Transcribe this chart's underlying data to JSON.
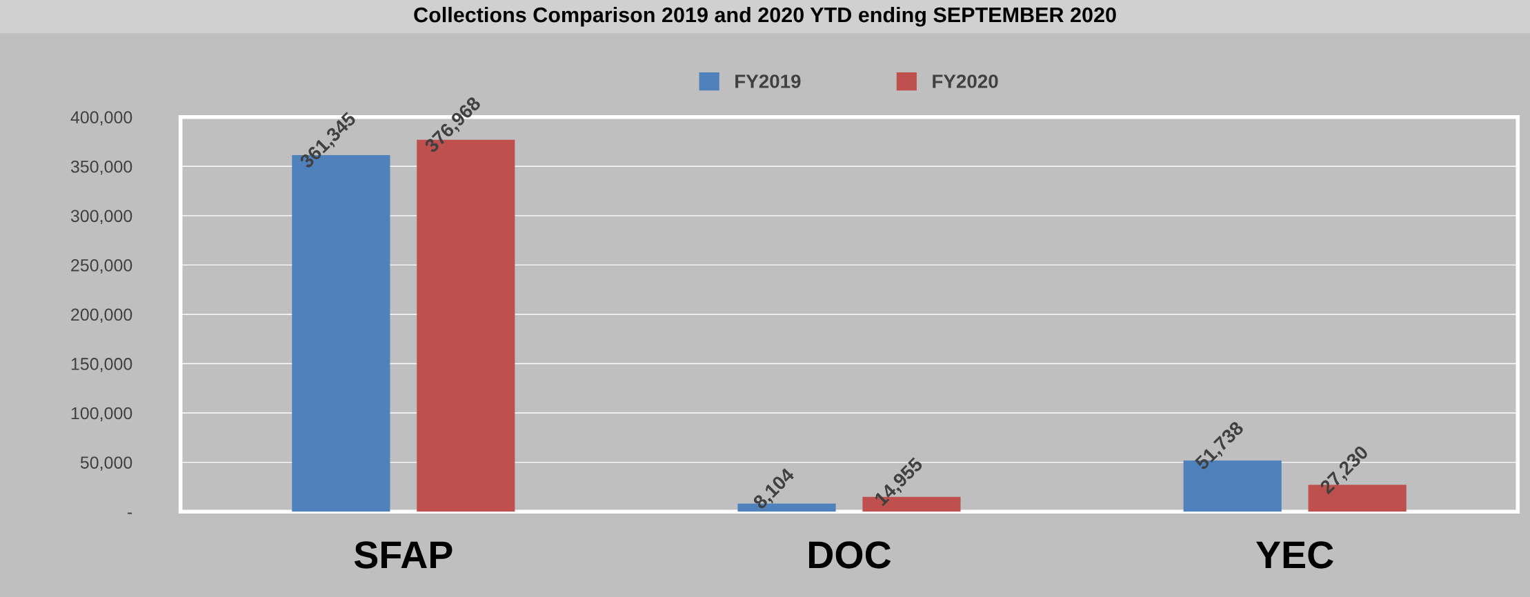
{
  "chart_data": {
    "type": "bar",
    "title": "Collections Comparison 2019 and 2020 YTD ending SEPTEMBER 2020",
    "categories": [
      "SFAP",
      "DOC",
      "YEC"
    ],
    "series": [
      {
        "name": "FY2019",
        "color": "#4f81bd",
        "values": [
          361345,
          8104,
          51738
        ],
        "value_labels": [
          "361,345",
          "8,104",
          "51,738"
        ]
      },
      {
        "name": "FY2020",
        "color": "#c0504d",
        "values": [
          376968,
          14955,
          27230
        ],
        "value_labels": [
          "376,968",
          "14,955",
          "27,230"
        ]
      }
    ],
    "ylim": [
      0,
      400000
    ],
    "yticks": [
      {
        "value": 0,
        "label": "-"
      },
      {
        "value": 50000,
        "label": "50,000"
      },
      {
        "value": 100000,
        "label": "100,000"
      },
      {
        "value": 150000,
        "label": "150,000"
      },
      {
        "value": 200000,
        "label": "200,000"
      },
      {
        "value": 250000,
        "label": "250,000"
      },
      {
        "value": 300000,
        "label": "300,000"
      },
      {
        "value": 350000,
        "label": "350,000"
      },
      {
        "value": 400000,
        "label": "400,000"
      }
    ],
    "grid": "y",
    "legend": "top"
  }
}
